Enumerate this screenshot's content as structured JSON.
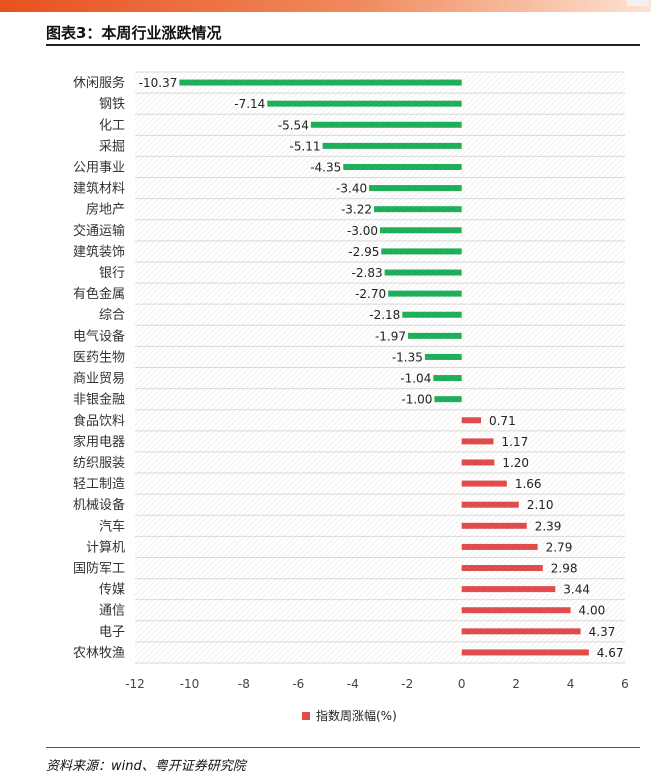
{
  "header": {
    "title": "图表3：本周行业涨跌情况"
  },
  "footer": {
    "source": "资料来源：wind、粤开证券研究院"
  },
  "colors": {
    "positive": "#e04c4c",
    "negative": "#1fae5a",
    "accent": "#e8511f"
  },
  "chart_data": {
    "type": "bar",
    "orientation": "horizontal",
    "categories": [
      "休闲服务",
      "钢铁",
      "化工",
      "采掘",
      "公用事业",
      "建筑材料",
      "房地产",
      "交通运输",
      "建筑装饰",
      "银行",
      "有色金属",
      "综合",
      "电气设备",
      "医药生物",
      "商业贸易",
      "非银金融",
      "食品饮料",
      "家用电器",
      "纺织服装",
      "轻工制造",
      "机械设备",
      "汽车",
      "计算机",
      "国防军工",
      "传媒",
      "通信",
      "电子",
      "农林牧渔"
    ],
    "series": [
      {
        "name": "指数周涨幅(%)",
        "values": [
          -10.37,
          -7.14,
          -5.54,
          -5.11,
          -4.35,
          -3.4,
          -3.22,
          -3.0,
          -2.95,
          -2.83,
          -2.7,
          -2.18,
          -1.97,
          -1.35,
          -1.04,
          -1.0,
          0.71,
          1.17,
          1.2,
          1.66,
          2.1,
          2.39,
          2.79,
          2.98,
          3.44,
          4.0,
          4.37,
          4.67
        ],
        "labels": [
          "-10.37",
          "-7.14",
          "-5.54",
          "-5.11",
          "-4.35",
          "-3.40",
          "-3.22",
          "-3.00",
          "-2.95",
          "-2.83",
          "-2.70",
          "-2.18",
          "-1.97",
          "-1.35",
          "-1.04",
          "-1.00",
          "0.71",
          "1.17",
          "1.20",
          "1.66",
          "2.10",
          "2.39",
          "2.79",
          "2.98",
          "3.44",
          "4.00",
          "4.37",
          "4.67"
        ]
      }
    ],
    "xlim": [
      -12,
      6
    ],
    "xticks": [
      -12,
      -10,
      -8,
      -6,
      -4,
      -2,
      0,
      2,
      4,
      6
    ],
    "legend_position": "bottom",
    "grid": true,
    "legend_label": "指数周涨幅(%)"
  }
}
